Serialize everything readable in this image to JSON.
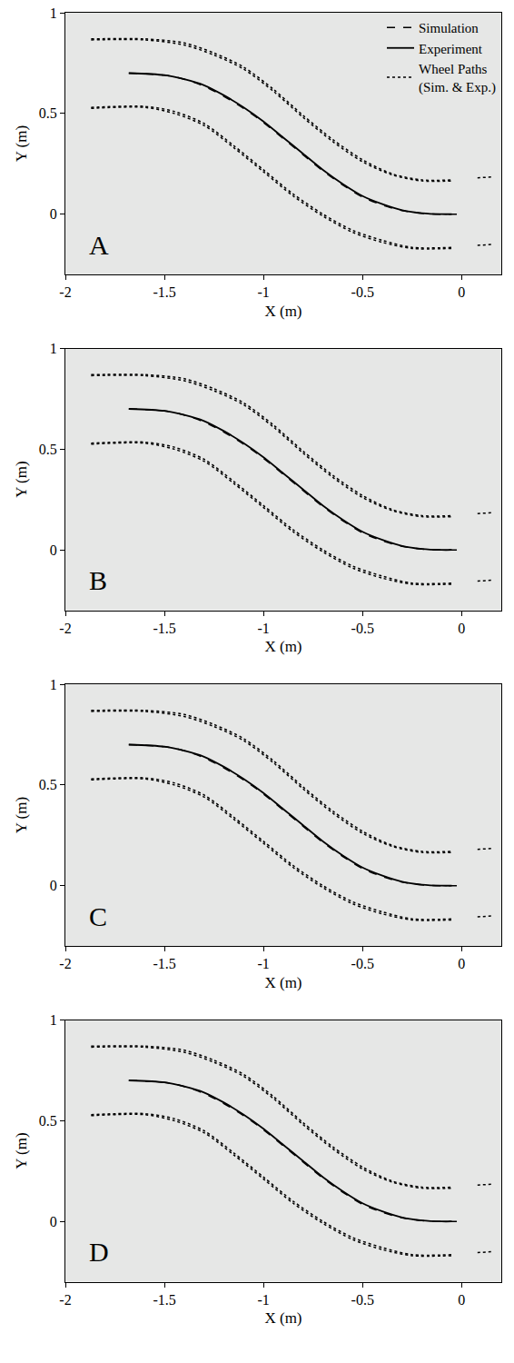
{
  "chart_data": [
    {
      "type": "line",
      "title": "A",
      "xlabel": "X (m)",
      "ylabel": "Y (m)",
      "xlim": [
        -2,
        0.2
      ],
      "ylim": [
        -0.3,
        1
      ],
      "xticks": [
        -2,
        -1.5,
        -1,
        -0.5,
        0
      ],
      "yticks": [
        0,
        0.5,
        1
      ],
      "grid": false,
      "legend": "top right",
      "series": [
        {
          "name": "Simulation",
          "color": "#000000",
          "line_style": "dashed",
          "x": [
            -1.68,
            -1.5,
            -1.4,
            -1.3,
            -1.2,
            -1.1,
            -1.0,
            -0.9,
            -0.8,
            -0.7,
            -0.6,
            -0.5,
            -0.4,
            -0.3,
            -0.2,
            -0.1,
            0.0
          ],
          "values": [
            0.7,
            0.69,
            0.67,
            0.635,
            0.585,
            0.525,
            0.455,
            0.375,
            0.295,
            0.215,
            0.145,
            0.085,
            0.045,
            0.018,
            0.004,
            0.0,
            0.0
          ]
        },
        {
          "name": "Experiment",
          "color": "#000000",
          "line_style": "solid",
          "x": [
            -1.68,
            -1.5,
            -1.4,
            -1.3,
            -1.2,
            -1.1,
            -1.0,
            -0.9,
            -0.8,
            -0.7,
            -0.6,
            -0.5,
            -0.4,
            -0.3,
            -0.2,
            -0.1,
            -0.05
          ],
          "values": [
            0.7,
            0.69,
            0.67,
            0.64,
            0.59,
            0.53,
            0.46,
            0.38,
            0.3,
            0.22,
            0.15,
            0.09,
            0.05,
            0.02,
            0.005,
            0.0,
            0.0
          ]
        },
        {
          "name": "Wheel Paths (Sim. & Exp.)",
          "color": "#000000",
          "line_style": "dotted",
          "x": [
            -1.87,
            -1.6,
            -1.4,
            -1.25,
            -1.1,
            -0.95,
            -0.8,
            -0.65,
            -0.5,
            -0.35,
            -0.2,
            -0.05,
            null,
            -1.87,
            -1.6,
            -1.4,
            -1.25,
            -1.1,
            -0.95,
            -0.8,
            -0.65,
            -0.5,
            -0.35,
            -0.2,
            -0.05,
            null,
            0.08,
            0.15,
            null,
            -1.87,
            -1.6,
            -1.45,
            -1.3,
            -1.15,
            -1.0,
            -0.85,
            -0.7,
            -0.55,
            -0.4,
            -0.25,
            -0.05,
            null,
            -1.87,
            -1.6,
            -1.45,
            -1.3,
            -1.15,
            -1.0,
            -0.85,
            -0.7,
            -0.55,
            -0.4,
            -0.25,
            -0.05,
            null,
            0.08,
            0.15
          ],
          "values": [
            0.87,
            0.87,
            0.85,
            0.8,
            0.73,
            0.62,
            0.49,
            0.37,
            0.27,
            0.2,
            0.17,
            0.17,
            null,
            0.865,
            0.865,
            0.84,
            0.79,
            0.72,
            0.61,
            0.48,
            0.36,
            0.26,
            0.195,
            0.165,
            0.165,
            null,
            0.18,
            0.185,
            null,
            0.53,
            0.535,
            0.51,
            0.45,
            0.34,
            0.22,
            0.1,
            0.0,
            -0.08,
            -0.13,
            -0.165,
            -0.165,
            null,
            0.525,
            0.53,
            0.5,
            0.44,
            0.33,
            0.21,
            0.09,
            -0.01,
            -0.09,
            -0.14,
            -0.17,
            -0.17,
            null,
            -0.155,
            -0.15
          ]
        }
      ]
    },
    {
      "type": "line",
      "title": "B",
      "xlabel": "X (m)",
      "ylabel": "Y (m)",
      "xlim": [
        -2,
        0.2
      ],
      "ylim": [
        -0.3,
        1
      ],
      "xticks": [
        -2,
        -1.5,
        -1,
        -0.5,
        0
      ],
      "yticks": [
        0,
        0.5,
        1
      ],
      "grid": false,
      "series": [
        {
          "name": "Simulation",
          "color": "#000000",
          "line_style": "dashed",
          "x": [
            -1.68,
            -1.5,
            -1.4,
            -1.3,
            -1.2,
            -1.1,
            -1.0,
            -0.9,
            -0.8,
            -0.7,
            -0.6,
            -0.5,
            -0.4,
            -0.3,
            -0.2,
            -0.1,
            0.0
          ],
          "values": [
            0.7,
            0.69,
            0.67,
            0.635,
            0.585,
            0.525,
            0.455,
            0.375,
            0.295,
            0.215,
            0.145,
            0.085,
            0.045,
            0.018,
            0.004,
            0.0,
            0.0
          ]
        },
        {
          "name": "Experiment",
          "color": "#000000",
          "line_style": "solid",
          "x": [
            -1.68,
            -1.5,
            -1.4,
            -1.3,
            -1.2,
            -1.1,
            -1.0,
            -0.9,
            -0.8,
            -0.7,
            -0.6,
            -0.5,
            -0.4,
            -0.3,
            -0.2,
            -0.1,
            -0.05
          ],
          "values": [
            0.7,
            0.69,
            0.67,
            0.64,
            0.59,
            0.53,
            0.46,
            0.38,
            0.3,
            0.22,
            0.15,
            0.09,
            0.05,
            0.02,
            0.005,
            0.0,
            0.0
          ]
        },
        {
          "name": "Wheel Paths (Sim. & Exp.)",
          "color": "#000000",
          "line_style": "dotted",
          "x": [
            -1.87,
            -1.6,
            -1.4,
            -1.25,
            -1.1,
            -0.95,
            -0.8,
            -0.65,
            -0.5,
            -0.35,
            -0.2,
            -0.05,
            null,
            -1.87,
            -1.6,
            -1.4,
            -1.25,
            -1.1,
            -0.95,
            -0.8,
            -0.65,
            -0.5,
            -0.35,
            -0.2,
            -0.05,
            null,
            0.08,
            0.15,
            null,
            -1.87,
            -1.6,
            -1.45,
            -1.3,
            -1.15,
            -1.0,
            -0.85,
            -0.7,
            -0.55,
            -0.4,
            -0.25,
            -0.05,
            null,
            -1.87,
            -1.6,
            -1.45,
            -1.3,
            -1.15,
            -1.0,
            -0.85,
            -0.7,
            -0.55,
            -0.4,
            -0.25,
            -0.05,
            null,
            0.08,
            0.15
          ],
          "values": [
            0.87,
            0.87,
            0.85,
            0.8,
            0.73,
            0.62,
            0.49,
            0.37,
            0.27,
            0.2,
            0.17,
            0.17,
            null,
            0.865,
            0.865,
            0.84,
            0.79,
            0.72,
            0.61,
            0.48,
            0.36,
            0.26,
            0.195,
            0.165,
            0.165,
            null,
            0.18,
            0.185,
            null,
            0.53,
            0.535,
            0.51,
            0.45,
            0.34,
            0.22,
            0.1,
            0.0,
            -0.08,
            -0.13,
            -0.165,
            -0.165,
            null,
            0.525,
            0.53,
            0.5,
            0.44,
            0.33,
            0.21,
            0.09,
            -0.01,
            -0.09,
            -0.14,
            -0.17,
            -0.17,
            null,
            -0.155,
            -0.15
          ]
        }
      ]
    },
    {
      "type": "line",
      "title": "C",
      "xlabel": "X (m)",
      "ylabel": "Y (m)",
      "xlim": [
        -2,
        0.2
      ],
      "ylim": [
        -0.3,
        1
      ],
      "xticks": [
        -2,
        -1.5,
        -1,
        -0.5,
        0
      ],
      "yticks": [
        0,
        0.5,
        1
      ],
      "grid": false,
      "series": [
        {
          "name": "Simulation",
          "color": "#000000",
          "line_style": "dashed",
          "x": [
            -1.68,
            -1.5,
            -1.4,
            -1.3,
            -1.2,
            -1.1,
            -1.0,
            -0.9,
            -0.8,
            -0.7,
            -0.6,
            -0.5,
            -0.4,
            -0.3,
            -0.2,
            -0.1,
            0.0
          ],
          "values": [
            0.7,
            0.69,
            0.67,
            0.635,
            0.585,
            0.525,
            0.455,
            0.375,
            0.295,
            0.215,
            0.145,
            0.085,
            0.045,
            0.018,
            0.004,
            0.0,
            0.0
          ]
        },
        {
          "name": "Experiment",
          "color": "#000000",
          "line_style": "solid",
          "x": [
            -1.68,
            -1.5,
            -1.4,
            -1.3,
            -1.2,
            -1.1,
            -1.0,
            -0.9,
            -0.8,
            -0.7,
            -0.6,
            -0.5,
            -0.4,
            -0.3,
            -0.2,
            -0.1,
            -0.05
          ],
          "values": [
            0.7,
            0.69,
            0.67,
            0.64,
            0.59,
            0.53,
            0.46,
            0.38,
            0.3,
            0.22,
            0.15,
            0.09,
            0.05,
            0.02,
            0.005,
            0.0,
            0.0
          ]
        },
        {
          "name": "Wheel Paths (Sim. & Exp.)",
          "color": "#000000",
          "line_style": "dotted",
          "x": [
            -1.87,
            -1.6,
            -1.4,
            -1.25,
            -1.1,
            -0.95,
            -0.8,
            -0.65,
            -0.5,
            -0.35,
            -0.2,
            -0.05,
            null,
            -1.87,
            -1.6,
            -1.4,
            -1.25,
            -1.1,
            -0.95,
            -0.8,
            -0.65,
            -0.5,
            -0.35,
            -0.2,
            -0.05,
            null,
            0.08,
            0.15,
            null,
            -1.87,
            -1.6,
            -1.45,
            -1.3,
            -1.15,
            -1.0,
            -0.85,
            -0.7,
            -0.55,
            -0.4,
            -0.25,
            -0.05,
            null,
            -1.87,
            -1.6,
            -1.45,
            -1.3,
            -1.15,
            -1.0,
            -0.85,
            -0.7,
            -0.55,
            -0.4,
            -0.25,
            -0.05,
            null,
            0.08,
            0.15
          ],
          "values": [
            0.87,
            0.87,
            0.85,
            0.8,
            0.73,
            0.62,
            0.49,
            0.37,
            0.27,
            0.2,
            0.17,
            0.17,
            null,
            0.865,
            0.865,
            0.84,
            0.79,
            0.72,
            0.61,
            0.48,
            0.36,
            0.26,
            0.195,
            0.165,
            0.165,
            null,
            0.18,
            0.185,
            null,
            0.53,
            0.535,
            0.51,
            0.45,
            0.34,
            0.22,
            0.1,
            0.0,
            -0.08,
            -0.13,
            -0.165,
            -0.165,
            null,
            0.525,
            0.53,
            0.5,
            0.44,
            0.33,
            0.21,
            0.09,
            -0.01,
            -0.09,
            -0.14,
            -0.17,
            -0.17,
            null,
            -0.155,
            -0.15
          ]
        }
      ]
    },
    {
      "type": "line",
      "title": "D",
      "xlabel": "X (m)",
      "ylabel": "Y (m)",
      "xlim": [
        -2,
        0.2
      ],
      "ylim": [
        -0.3,
        1
      ],
      "xticks": [
        -2,
        -1.5,
        -1,
        -0.5,
        0
      ],
      "yticks": [
        0,
        0.5,
        1
      ],
      "grid": false,
      "series": [
        {
          "name": "Simulation",
          "color": "#000000",
          "line_style": "dashed",
          "x": [
            -1.68,
            -1.5,
            -1.4,
            -1.3,
            -1.2,
            -1.1,
            -1.0,
            -0.9,
            -0.8,
            -0.7,
            -0.6,
            -0.5,
            -0.4,
            -0.3,
            -0.2,
            -0.1,
            0.0
          ],
          "values": [
            0.7,
            0.69,
            0.67,
            0.635,
            0.585,
            0.525,
            0.455,
            0.375,
            0.295,
            0.215,
            0.145,
            0.085,
            0.045,
            0.018,
            0.004,
            0.0,
            0.0
          ]
        },
        {
          "name": "Experiment",
          "color": "#000000",
          "line_style": "solid",
          "x": [
            -1.68,
            -1.5,
            -1.4,
            -1.3,
            -1.2,
            -1.1,
            -1.0,
            -0.9,
            -0.8,
            -0.7,
            -0.6,
            -0.5,
            -0.4,
            -0.3,
            -0.2,
            -0.1,
            -0.05
          ],
          "values": [
            0.7,
            0.69,
            0.67,
            0.64,
            0.59,
            0.53,
            0.46,
            0.38,
            0.3,
            0.22,
            0.15,
            0.09,
            0.05,
            0.02,
            0.005,
            0.0,
            0.0
          ]
        },
        {
          "name": "Wheel Paths (Sim. & Exp.)",
          "color": "#000000",
          "line_style": "dotted",
          "x": [
            -1.87,
            -1.6,
            -1.4,
            -1.25,
            -1.1,
            -0.95,
            -0.8,
            -0.65,
            -0.5,
            -0.35,
            -0.2,
            -0.05,
            null,
            -1.87,
            -1.6,
            -1.4,
            -1.25,
            -1.1,
            -0.95,
            -0.8,
            -0.65,
            -0.5,
            -0.35,
            -0.2,
            -0.05,
            null,
            0.08,
            0.15,
            null,
            -1.87,
            -1.6,
            -1.45,
            -1.3,
            -1.15,
            -1.0,
            -0.85,
            -0.7,
            -0.55,
            -0.4,
            -0.25,
            -0.05,
            null,
            -1.87,
            -1.6,
            -1.45,
            -1.3,
            -1.15,
            -1.0,
            -0.85,
            -0.7,
            -0.55,
            -0.4,
            -0.25,
            -0.05,
            null,
            0.08,
            0.15
          ],
          "values": [
            0.87,
            0.87,
            0.85,
            0.8,
            0.73,
            0.62,
            0.49,
            0.37,
            0.27,
            0.2,
            0.17,
            0.17,
            null,
            0.865,
            0.865,
            0.84,
            0.79,
            0.72,
            0.61,
            0.48,
            0.36,
            0.26,
            0.195,
            0.165,
            0.165,
            null,
            0.18,
            0.185,
            null,
            0.53,
            0.535,
            0.51,
            0.45,
            0.34,
            0.22,
            0.1,
            0.0,
            -0.08,
            -0.13,
            -0.165,
            -0.165,
            null,
            0.525,
            0.53,
            0.5,
            0.44,
            0.33,
            0.21,
            0.09,
            -0.01,
            -0.09,
            -0.14,
            -0.17,
            -0.17,
            null,
            -0.155,
            -0.15
          ]
        }
      ]
    }
  ]
}
